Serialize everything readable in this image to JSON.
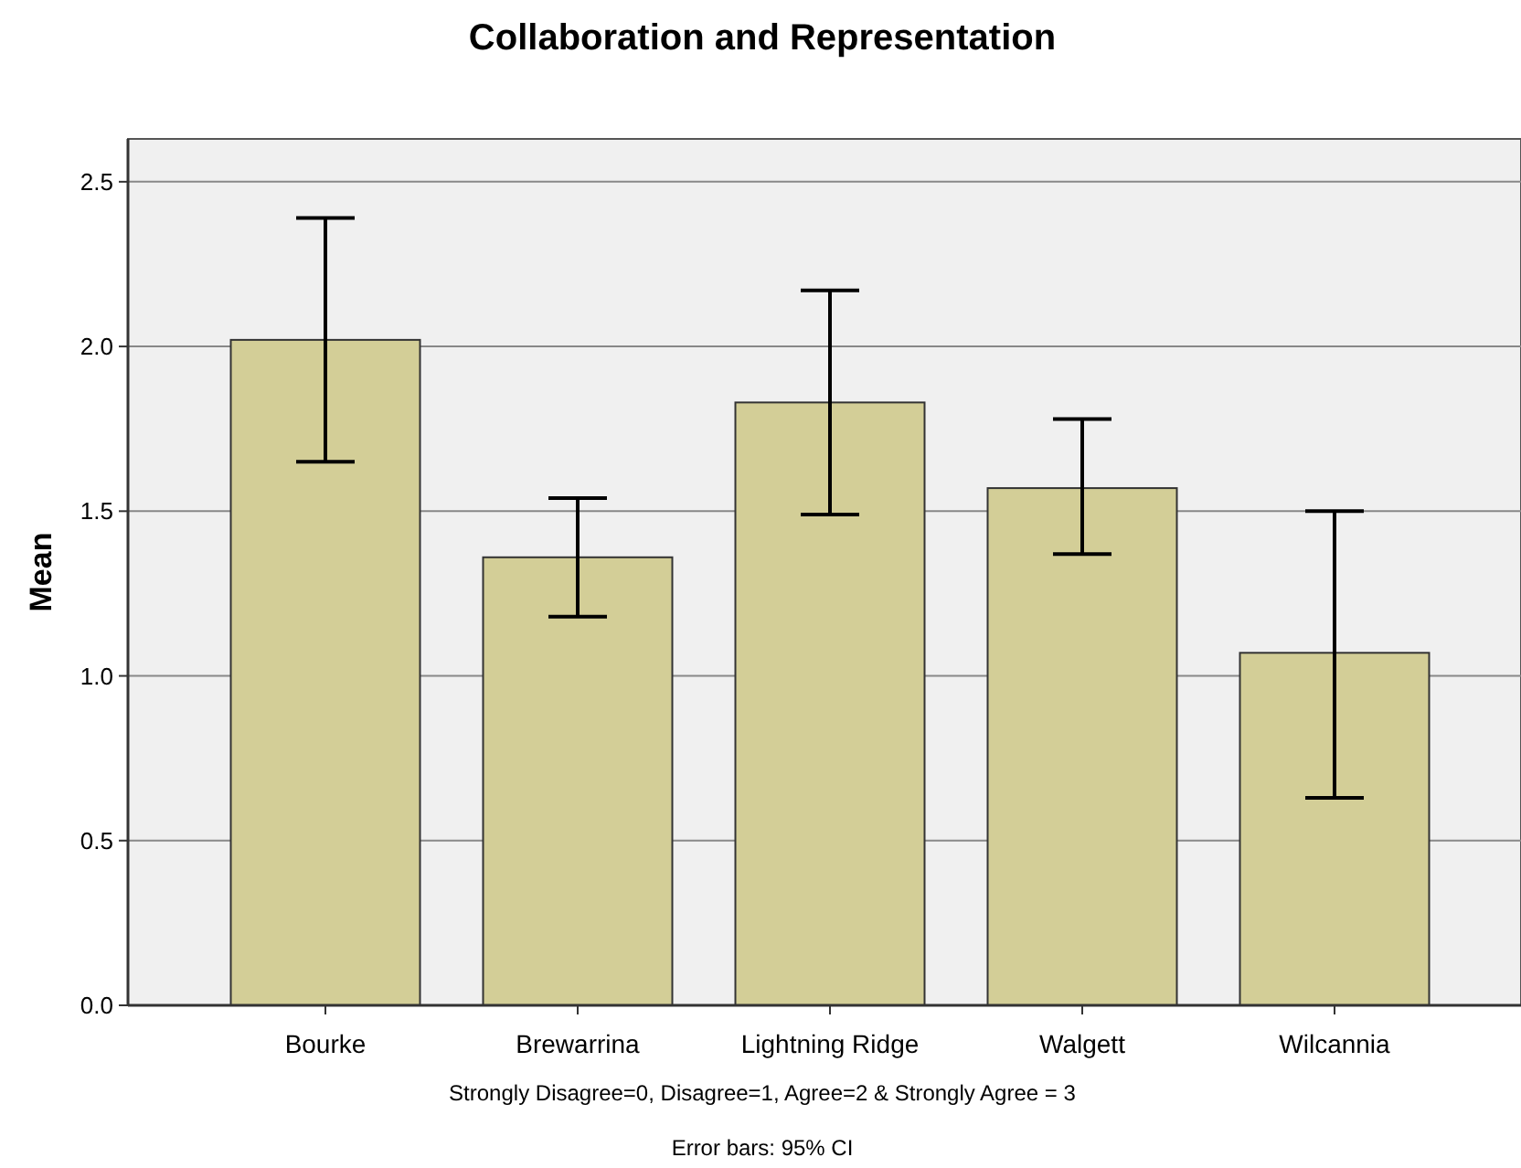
{
  "chart_data": {
    "type": "bar",
    "title": "Collaboration and Representation",
    "ylabel": "Mean",
    "categories": [
      "Bourke",
      "Brewarrina",
      "Lightning Ridge",
      "Walgett",
      "Wilcannia"
    ],
    "values": [
      2.02,
      1.36,
      1.83,
      1.57,
      1.07
    ],
    "errors": [
      [
        1.65,
        2.39
      ],
      [
        1.18,
        1.54
      ],
      [
        1.49,
        2.17
      ],
      [
        1.37,
        1.78
      ],
      [
        0.63,
        1.5
      ]
    ],
    "color": "#d3ce97",
    "ylim": [
      0,
      2.63
    ],
    "yticks": [
      {
        "value": 0,
        "label": "0.0"
      },
      {
        "value": 0.5,
        "label": "0.5"
      },
      {
        "value": 1,
        "label": "1.0"
      },
      {
        "value": 1.5,
        "label": "1.5"
      },
      {
        "value": 2,
        "label": "2.0"
      },
      {
        "value": 2.5,
        "label": "2.5"
      }
    ],
    "grid": "y",
    "annotations": [
      "Strongly Disagree=0, Disagree=1, Agree=2 & Strongly Agree = 3",
      "Error bars: 95% CI"
    ]
  }
}
